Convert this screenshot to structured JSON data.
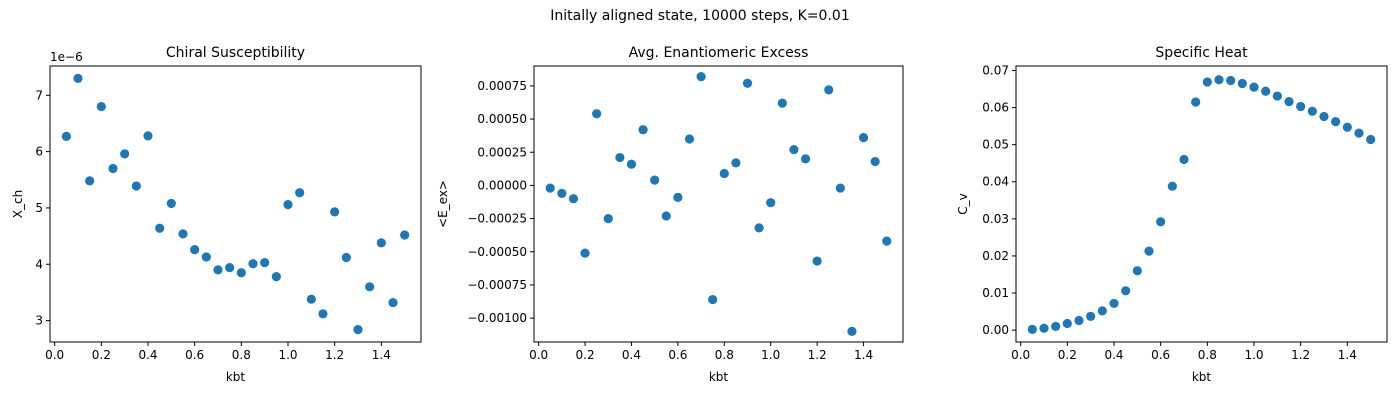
{
  "suptitle": "Initally aligned state, 10000 steps, K=0.01",
  "chart_data": [
    {
      "type": "scatter",
      "title": "Chiral Susceptibility",
      "xlabel": "kbt",
      "ylabel": "X_ch",
      "offset_label": "1e−6",
      "color": "#1f77b4",
      "xlim": [
        -0.02,
        1.57
      ],
      "ylim": [
        2.62,
        7.52
      ],
      "xticks": [
        0.0,
        0.2,
        0.4,
        0.6,
        0.8,
        1.0,
        1.2,
        1.4
      ],
      "xtick_labels": [
        "0.0",
        "0.2",
        "0.4",
        "0.6",
        "0.8",
        "1.0",
        "1.2",
        "1.4"
      ],
      "yticks": [
        3,
        4,
        5,
        6,
        7
      ],
      "ytick_labels": [
        "3",
        "4",
        "5",
        "6",
        "7"
      ],
      "x": [
        0.05,
        0.1,
        0.15,
        0.2,
        0.25,
        0.3,
        0.35,
        0.4,
        0.45,
        0.5,
        0.55,
        0.6,
        0.65,
        0.7,
        0.75,
        0.8,
        0.85,
        0.9,
        0.95,
        1.0,
        1.05,
        1.1,
        1.15,
        1.2,
        1.25,
        1.3,
        1.35,
        1.4,
        1.45,
        1.5
      ],
      "y": [
        6.27,
        7.3,
        5.48,
        6.8,
        5.7,
        5.96,
        5.39,
        6.28,
        4.64,
        5.08,
        4.54,
        4.26,
        4.13,
        3.9,
        3.94,
        3.85,
        4.01,
        4.03,
        3.78,
        5.06,
        5.27,
        3.38,
        3.12,
        4.93,
        4.12,
        2.84,
        3.6,
        4.38,
        3.32,
        4.52
      ]
    },
    {
      "type": "scatter",
      "title": "Avg. Enantiomeric Excess",
      "xlabel": "kbt",
      "ylabel": "<E_ex>",
      "color": "#1f77b4",
      "xlim": [
        -0.02,
        1.57
      ],
      "ylim": [
        -0.00118,
        0.0009
      ],
      "xticks": [
        0.0,
        0.2,
        0.4,
        0.6,
        0.8,
        1.0,
        1.2,
        1.4
      ],
      "xtick_labels": [
        "0.0",
        "0.2",
        "0.4",
        "0.6",
        "0.8",
        "1.0",
        "1.2",
        "1.4"
      ],
      "yticks": [
        -0.001,
        -0.00075,
        -0.0005,
        -0.00025,
        0.0,
        0.00025,
        0.0005,
        0.00075
      ],
      "ytick_labels": [
        "−0.00100",
        "−0.00075",
        "−0.00050",
        "−0.00025",
        "0.00000",
        "0.00025",
        "0.00050",
        "0.00075"
      ],
      "x": [
        0.05,
        0.1,
        0.15,
        0.2,
        0.25,
        0.3,
        0.35,
        0.4,
        0.45,
        0.5,
        0.55,
        0.6,
        0.65,
        0.7,
        0.75,
        0.8,
        0.85,
        0.9,
        0.95,
        1.0,
        1.05,
        1.1,
        1.15,
        1.2,
        1.25,
        1.3,
        1.35,
        1.4,
        1.45,
        1.5
      ],
      "y": [
        -2e-05,
        -6e-05,
        -0.0001,
        -0.00051,
        0.00054,
        -0.00025,
        0.00021,
        0.00016,
        0.00042,
        4e-05,
        -0.00023,
        -9e-05,
        0.00035,
        0.00082,
        -0.00086,
        9e-05,
        0.00017,
        0.00077,
        -0.00032,
        -0.00013,
        0.00062,
        0.00027,
        0.0002,
        -0.00057,
        0.00072,
        -2e-05,
        -0.0011,
        0.00036,
        0.00018,
        -0.00042
      ]
    },
    {
      "type": "scatter",
      "title": "Specific Heat",
      "xlabel": "kbt",
      "ylabel": "C_v",
      "color": "#1f77b4",
      "xlim": [
        -0.02,
        1.57
      ],
      "ylim": [
        -0.0032,
        0.0712
      ],
      "xticks": [
        0.0,
        0.2,
        0.4,
        0.6,
        0.8,
        1.0,
        1.2,
        1.4
      ],
      "xtick_labels": [
        "0.0",
        "0.2",
        "0.4",
        "0.6",
        "0.8",
        "1.0",
        "1.2",
        "1.4"
      ],
      "yticks": [
        0.0,
        0.01,
        0.02,
        0.03,
        0.04,
        0.05,
        0.06,
        0.07
      ],
      "ytick_labels": [
        "0.00",
        "0.01",
        "0.02",
        "0.03",
        "0.04",
        "0.05",
        "0.06",
        "0.07"
      ],
      "x": [
        0.05,
        0.1,
        0.15,
        0.2,
        0.25,
        0.3,
        0.35,
        0.4,
        0.45,
        0.5,
        0.55,
        0.6,
        0.65,
        0.7,
        0.75,
        0.8,
        0.85,
        0.9,
        0.95,
        1.0,
        1.05,
        1.1,
        1.15,
        1.2,
        1.25,
        1.3,
        1.35,
        1.4,
        1.45,
        1.5
      ],
      "y": [
        0.0002,
        0.0005,
        0.001,
        0.0018,
        0.0026,
        0.0037,
        0.0052,
        0.0072,
        0.0106,
        0.016,
        0.0213,
        0.0292,
        0.0388,
        0.046,
        0.0615,
        0.0669,
        0.0675,
        0.0673,
        0.0665,
        0.0655,
        0.0644,
        0.0631,
        0.0616,
        0.0603,
        0.059,
        0.0576,
        0.0562,
        0.0547,
        0.0531,
        0.0514
      ]
    }
  ]
}
